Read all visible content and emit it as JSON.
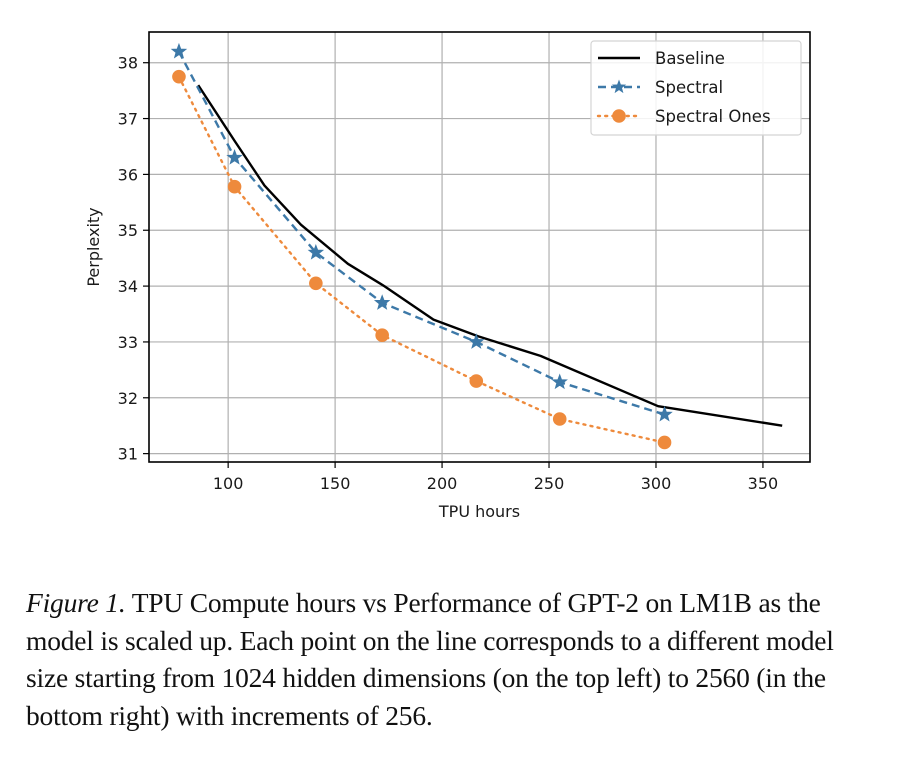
{
  "chart_data": {
    "type": "line",
    "title": "",
    "xlabel": "TPU hours",
    "ylabel": "Perplexity",
    "xlim": [
      63,
      372
    ],
    "ylim": [
      30.85,
      38.55
    ],
    "xticks": [
      100,
      150,
      200,
      250,
      300,
      350
    ],
    "yticks": [
      31,
      32,
      33,
      34,
      35,
      36,
      37,
      38
    ],
    "grid": true,
    "legend_position": "top-right",
    "series": [
      {
        "name": "Baseline",
        "color": "#000000",
        "linestyle": "solid",
        "marker": "none",
        "x": [
          86,
          103,
          117,
          134,
          156,
          173,
          196,
          217,
          246,
          301,
          359
        ],
        "y": [
          37.6,
          36.6,
          35.8,
          35.1,
          34.4,
          34.0,
          33.4,
          33.1,
          32.75,
          31.85,
          31.5
        ]
      },
      {
        "name": "Spectral",
        "color": "#3d79a8",
        "linestyle": "dashed",
        "marker": "star",
        "x": [
          77,
          103,
          141,
          172,
          216,
          255,
          304
        ],
        "y": [
          38.2,
          36.3,
          34.6,
          33.7,
          33.0,
          32.28,
          31.7
        ]
      },
      {
        "name": "Spectral Ones",
        "color": "#ee8a3c",
        "linestyle": "dotted",
        "marker": "circle",
        "x": [
          77,
          103,
          141,
          172,
          216,
          255,
          304
        ],
        "y": [
          37.75,
          35.78,
          34.05,
          33.12,
          32.3,
          31.62,
          31.2
        ]
      }
    ]
  },
  "caption": {
    "label": "Figure 1.",
    "text": " TPU Compute hours vs Performance of GPT-2 on LM1B as the model is scaled up. Each point on the line corresponds to a different model size starting from 1024 hidden dimensions (on the top left) to 2560 (in the bottom right) with increments of 256."
  }
}
